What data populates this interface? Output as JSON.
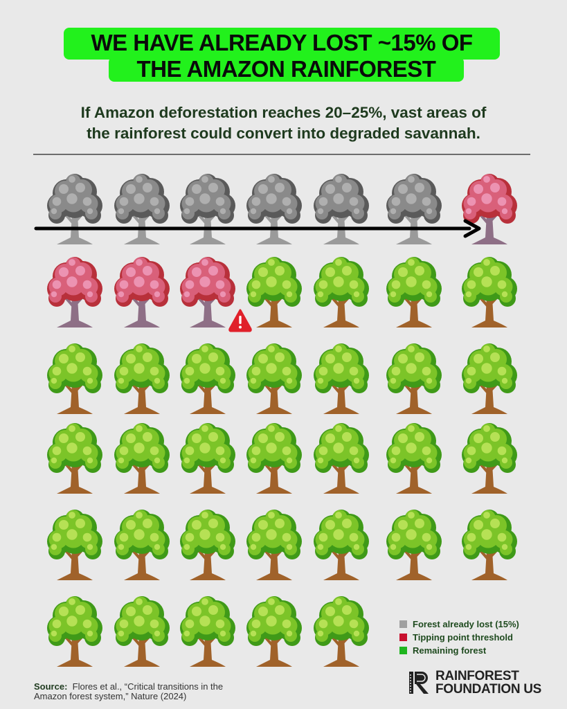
{
  "title": {
    "line1": "WE HAVE ALREADY LOST ~15% OF",
    "line2": "THE AMAZON RAINFOREST"
  },
  "subtitle": {
    "line1": "If Amazon deforestation reaches 20–25%, vast areas of",
    "line2": "the rainforest could convert into degraded savannah."
  },
  "colors": {
    "highlight": "#22f11c",
    "lost": "#a0a0a0",
    "tipping": "#c8102e",
    "remaining": "#1fb51f",
    "background": "#e9e9e9"
  },
  "chart_data": {
    "type": "pictogram",
    "unit": "tree",
    "total_icons": 40,
    "icons_per_row": 7,
    "categories": [
      "Forest already lost (15%)",
      "Tipping point threshold",
      "Remaining forest"
    ],
    "values": [
      6,
      4,
      30
    ],
    "annotations": [
      {
        "type": "arrow",
        "across": "first row, left to right, ending at first tipping tree"
      },
      {
        "type": "warning-icon",
        "after": "last tipping point tree"
      }
    ],
    "legend_placement": "bottom-right"
  },
  "legend": [
    {
      "label": "Forest already lost (15%)",
      "color": "#a0a0a0"
    },
    {
      "label": "Tipping point threshold",
      "color": "#c8102e"
    },
    {
      "label": "Remaining forest",
      "color": "#1fb51f"
    }
  ],
  "source": {
    "label": "Source:",
    "line1": "Flores et al., “Critical transitions in the",
    "line2": "Amazon forest system,” Nature (2024)"
  },
  "logo": {
    "line1": "RAINFOREST",
    "line2": "FOUNDATION US"
  }
}
